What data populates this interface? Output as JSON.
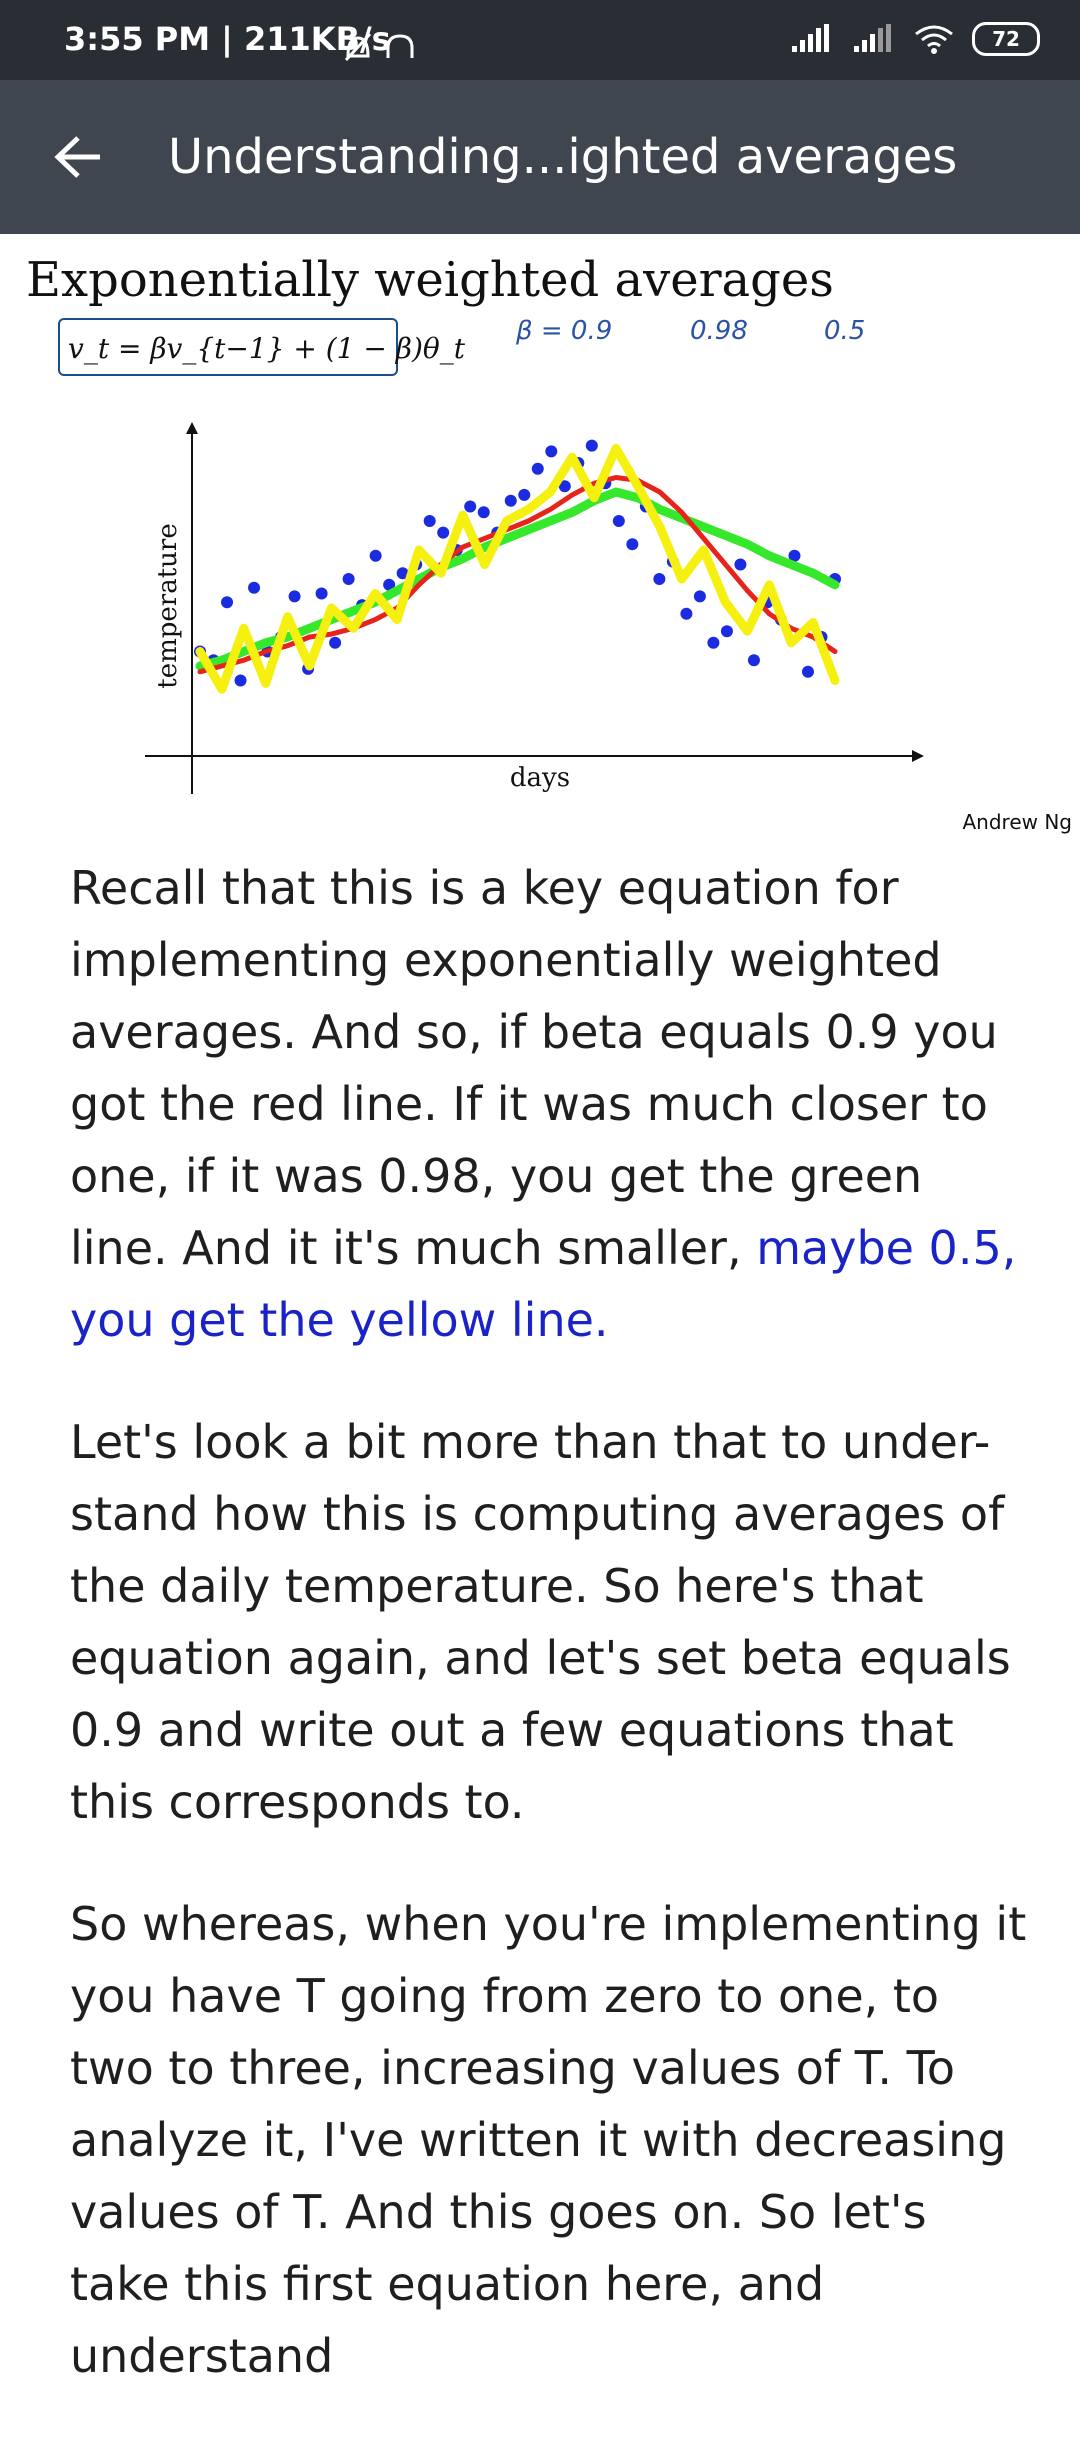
{
  "status_bar": {
    "time": "3:55 PM | 211KB/s",
    "battery": "72"
  },
  "header": {
    "title": "Understanding...ighted averages"
  },
  "slide": {
    "title": "Exponentially weighted averages",
    "formula": "v_t = βv_{t−1} + (1 − β)θ_t",
    "notes": [
      "β = 0.9",
      "0.98",
      "0.5"
    ],
    "author": "Andrew Ng"
  },
  "chart_data": {
    "type": "scatter",
    "xlabel": "days",
    "ylabel": "temperature",
    "series": [
      {
        "name": "β = 0.9",
        "color": "#e8231a",
        "values": [
          0.18,
          0.2,
          0.22,
          0.25,
          0.27,
          0.3,
          0.31,
          0.33,
          0.36,
          0.4,
          0.48,
          0.55,
          0.61,
          0.64,
          0.67,
          0.7,
          0.74,
          0.79,
          0.83,
          0.85,
          0.84,
          0.8,
          0.73,
          0.64,
          0.55,
          0.46,
          0.38,
          0.33,
          0.3,
          0.25
        ]
      },
      {
        "name": "0.98",
        "color": "#35e82b",
        "values": [
          0.2,
          0.22,
          0.25,
          0.28,
          0.3,
          0.33,
          0.36,
          0.39,
          0.42,
          0.46,
          0.5,
          0.54,
          0.57,
          0.61,
          0.64,
          0.67,
          0.7,
          0.73,
          0.77,
          0.8,
          0.78,
          0.74,
          0.71,
          0.68,
          0.65,
          0.62,
          0.58,
          0.55,
          0.52,
          0.48
        ]
      },
      {
        "name": "0.5",
        "color": "#f5f00f",
        "values": [
          0.25,
          0.12,
          0.33,
          0.14,
          0.37,
          0.2,
          0.4,
          0.33,
          0.45,
          0.36,
          0.6,
          0.52,
          0.72,
          0.55,
          0.7,
          0.74,
          0.8,
          0.92,
          0.78,
          0.95,
          0.82,
          0.68,
          0.5,
          0.6,
          0.42,
          0.32,
          0.48,
          0.28,
          0.35,
          0.15
        ]
      }
    ],
    "points_color": "#1b2be0",
    "points": [
      0.25,
      0.22,
      0.42,
      0.15,
      0.47,
      0.25,
      0.3,
      0.44,
      0.19,
      0.45,
      0.28,
      0.5,
      0.41,
      0.58,
      0.48,
      0.52,
      0.55,
      0.7,
      0.66,
      0.6,
      0.75,
      0.73,
      0.66,
      0.77,
      0.79,
      0.88,
      0.94,
      0.82,
      0.9,
      0.96,
      0.83,
      0.7,
      0.62,
      0.75,
      0.5,
      0.56,
      0.38,
      0.44,
      0.28,
      0.32,
      0.55,
      0.22,
      0.42,
      0.36,
      0.58,
      0.18,
      0.3,
      0.5
    ]
  },
  "transcript": {
    "p1_start": "Recall that this is a key equation for implementing exponentially weighted averages. And so, if beta equals 0.9 you got the red line. If it was much closer to one, if it was 0.98, you get the green line. And it it's much smaller,",
    "p1_highlight": "maybe 0.5, you get the yellow line.",
    "p2": "Let's look a bit more than that to under-stand how this is computing averages of the daily temperature. So here's that equation again, and let's set beta equals 0.9 and write out a few equations that this corresponds to.",
    "p3": "So whereas, when you're implementing it you have T going from zero to one, to two to three, increasing values of T.  To analyze it, I've written it with decreasing values of T.  And this goes on. So let's take this first equation here, and understand"
  }
}
